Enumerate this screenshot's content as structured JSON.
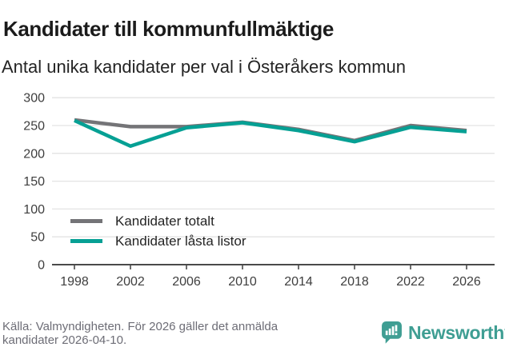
{
  "header": {
    "title": "Kandidater till kommunfullmäktige",
    "subtitle": "Antal unika kandidater per val i Österåkers kommun"
  },
  "chart_data": {
    "type": "line",
    "x": [
      1998,
      2002,
      2006,
      2010,
      2014,
      2018,
      2022,
      2026
    ],
    "xticklabels": [
      "1998",
      "2002",
      "2006",
      "2010",
      "2014",
      "2018",
      "2022",
      "2026"
    ],
    "series": [
      {
        "name": "Kandidater totalt",
        "color": "#747477",
        "values": [
          260,
          248,
          248,
          256,
          243,
          223,
          250,
          241
        ]
      },
      {
        "name": "Kandidater låsta listor",
        "color": "#06a094",
        "values": [
          259,
          213,
          246,
          255,
          241,
          221,
          247,
          239
        ]
      }
    ],
    "ylim": [
      0,
      300
    ],
    "yticks": [
      0,
      50,
      100,
      150,
      200,
      250,
      300
    ],
    "grid": "horizontal",
    "legend_position": "inside-bottom-left"
  },
  "footer": {
    "source": "Källa: Valmyndigheten. För 2026 gäller det anmälda kandidater 2026-04-10."
  },
  "branding": {
    "name": "Newsworthy",
    "icon": "newsworthy-bar-chart-speech-bubble-icon",
    "color": "#3f9e93"
  },
  "colors": {
    "grid": "#e3e3e3",
    "axis": "#4a4a4a",
    "tick_label": "#3e3e3e"
  }
}
